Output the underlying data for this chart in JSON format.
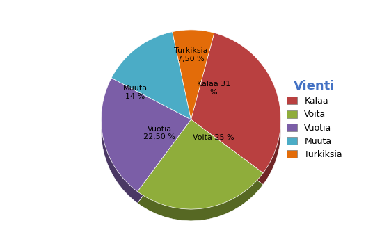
{
  "labels": [
    "Kalaa",
    "Voita",
    "Vuotia",
    "Muuta",
    "Turkiksia"
  ],
  "values": [
    31,
    25,
    22.5,
    14,
    7.5
  ],
  "colors": [
    "#b94040",
    "#8fad3b",
    "#7b5ea7",
    "#4bacc6",
    "#e36c09"
  ],
  "legend_title": "Vienti",
  "legend_entries": [
    "Kalaa",
    "Voita",
    "Vuotia",
    "Muuta",
    "Turkiksia"
  ],
  "legend_colors": [
    "#b94040",
    "#8fad3b",
    "#7b5ea7",
    "#4bacc6",
    "#e36c09"
  ],
  "legend_title_color": [
    "#4472c4"
  ],
  "autopct_labels": [
    "Kalaa 31\n%",
    "Voita 25 %",
    "Vuotia\n22,50 %",
    "Muuta\n14 %",
    "Turkiksia\n7,50 %"
  ],
  "background_color": "#ffffff",
  "fig_width": 5.49,
  "fig_height": 3.44
}
